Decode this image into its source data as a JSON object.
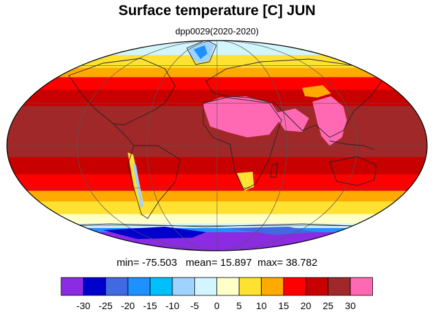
{
  "title": "Surface temperature [C] JUN",
  "subtitle": "dpp0029(2020-2020)",
  "stats": {
    "min_label": "min=",
    "min_value": "-75.503",
    "mean_label": "mean=",
    "mean_value": "15.897",
    "max_label": "max=",
    "max_value": "38.782"
  },
  "colorbar": {
    "colors": [
      "#8b2be2",
      "#0000cd",
      "#4169e1",
      "#1e90ff",
      "#00bfff",
      "#a0d2ff",
      "#d2f5ff",
      "#ffffc8",
      "#ffe132",
      "#ffaa00",
      "#ff0000",
      "#c80000",
      "#a02828",
      "#ff69b4"
    ],
    "ticks": [
      "-30",
      "-25",
      "-20",
      "-15",
      "-10",
      "-5",
      "0",
      "5",
      "10",
      "15",
      "20",
      "25",
      "30"
    ]
  },
  "map": {
    "projection": "mollweide",
    "latitude_bands": [
      {
        "lat": 90,
        "color": "#d2f5ff"
      },
      {
        "lat": 70,
        "color": "#ffe132"
      },
      {
        "lat": 58,
        "color": "#ffaa00"
      },
      {
        "lat": 50,
        "color": "#ff0000"
      },
      {
        "lat": 40,
        "color": "#c80000"
      },
      {
        "lat": 28,
        "color": "#a02828"
      },
      {
        "lat": -8,
        "color": "#c80000"
      },
      {
        "lat": -20,
        "color": "#ff0000"
      },
      {
        "lat": -32,
        "color": "#ffaa00"
      },
      {
        "lat": -40,
        "color": "#ffe132"
      },
      {
        "lat": -50,
        "color": "#ffffc8"
      },
      {
        "lat": -58,
        "color": "#d2f5ff"
      },
      {
        "lat": -62,
        "color": "#1e90ff"
      },
      {
        "lat": -66,
        "color": "#8b2be2"
      }
    ]
  }
}
